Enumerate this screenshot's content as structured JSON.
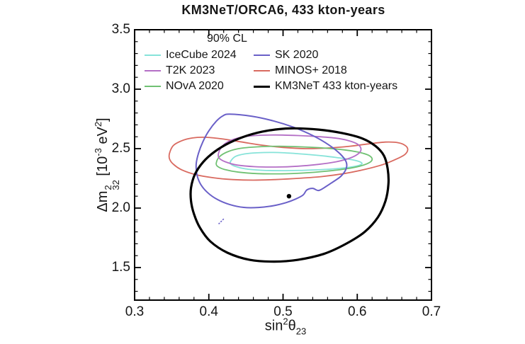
{
  "chart_data": {
    "type": "line",
    "variant": "confidence-contours",
    "title": "KM3NeT/ORCA6, 433 kton-years",
    "xlabel_text": "sin²θ₂₃",
    "ylabel_text": "Δm²₃₂ [10⁻³ eV²]",
    "xlabel": {
      "base": "sin",
      "sup": "2",
      "sym": "θ",
      "sub": "23"
    },
    "ylabel": {
      "base": "Δm",
      "stack_sup": "2",
      "stack_sub": "32",
      "unit_a": "[10",
      "unit_a_sup": "-3",
      "unit_b": "eV",
      "unit_b_sup": "2",
      "unit_close": "]"
    },
    "axis_color": "#000000",
    "background": "#ffffff",
    "x_axis": {
      "min": 0.3,
      "max": 0.7,
      "minor_step": 0.02,
      "major_ticks": [
        {
          "v": 0.3,
          "label": "0.3"
        },
        {
          "v": 0.4,
          "label": "0.4"
        },
        {
          "v": 0.5,
          "label": "0.5"
        },
        {
          "v": 0.6,
          "label": "0.6"
        },
        {
          "v": 0.7,
          "label": "0.7"
        }
      ]
    },
    "y_axis": {
      "min": 1.226,
      "max": 3.5,
      "minor_step": 0.1,
      "major_ticks": [
        {
          "v": 1.5,
          "label": "1.5"
        },
        {
          "v": 2.0,
          "label": "2.0"
        },
        {
          "v": 2.5,
          "label": "2.5"
        },
        {
          "v": 3.0,
          "label": "3.0"
        },
        {
          "v": 3.5,
          "label": "3.5"
        }
      ]
    },
    "legend": {
      "title": "90% CL",
      "position": "top-inside",
      "columns": [
        [
          "icecube",
          "t2k",
          "nova"
        ],
        [
          "sk",
          "minos",
          "km3net"
        ]
      ]
    },
    "draw_order": [
      "minos",
      "icecube",
      "nova",
      "t2k",
      "sk",
      "km3net"
    ],
    "series": [
      {
        "id": "icecube",
        "name": "IceCube 2024",
        "color": "#86e3d9",
        "width": 1.8,
        "points": [
          [
            0.43,
            2.4
          ],
          [
            0.436,
            2.435
          ],
          [
            0.448,
            2.455
          ],
          [
            0.465,
            2.465
          ],
          [
            0.487,
            2.468
          ],
          [
            0.51,
            2.462
          ],
          [
            0.535,
            2.45
          ],
          [
            0.558,
            2.436
          ],
          [
            0.578,
            2.42
          ],
          [
            0.594,
            2.405
          ],
          [
            0.604,
            2.388
          ],
          [
            0.606,
            2.37
          ],
          [
            0.598,
            2.352
          ],
          [
            0.58,
            2.336
          ],
          [
            0.556,
            2.325
          ],
          [
            0.528,
            2.318
          ],
          [
            0.5,
            2.315
          ],
          [
            0.472,
            2.318
          ],
          [
            0.449,
            2.33
          ],
          [
            0.435,
            2.352
          ],
          [
            0.429,
            2.375
          ]
        ]
      },
      {
        "id": "t2k",
        "name": "T2K 2023",
        "color": "#b46fc6",
        "width": 1.8,
        "points": [
          [
            0.413,
            2.46
          ],
          [
            0.418,
            2.52
          ],
          [
            0.428,
            2.565
          ],
          [
            0.443,
            2.595
          ],
          [
            0.462,
            2.61
          ],
          [
            0.49,
            2.615
          ],
          [
            0.52,
            2.61
          ],
          [
            0.55,
            2.6
          ],
          [
            0.575,
            2.585
          ],
          [
            0.592,
            2.56
          ],
          [
            0.602,
            2.53
          ],
          [
            0.605,
            2.49
          ],
          [
            0.601,
            2.455
          ],
          [
            0.59,
            2.42
          ],
          [
            0.572,
            2.39
          ],
          [
            0.548,
            2.368
          ],
          [
            0.52,
            2.352
          ],
          [
            0.49,
            2.345
          ],
          [
            0.462,
            2.348
          ],
          [
            0.438,
            2.362
          ],
          [
            0.422,
            2.39
          ],
          [
            0.414,
            2.42
          ]
        ]
      },
      {
        "id": "nova",
        "name": "NOvA 2020",
        "color": "#70c173",
        "width": 1.8,
        "points": [
          [
            0.41,
            2.378
          ],
          [
            0.414,
            2.43
          ],
          [
            0.424,
            2.47
          ],
          [
            0.44,
            2.5
          ],
          [
            0.465,
            2.515
          ],
          [
            0.495,
            2.52
          ],
          [
            0.525,
            2.515
          ],
          [
            0.555,
            2.505
          ],
          [
            0.582,
            2.49
          ],
          [
            0.602,
            2.47
          ],
          [
            0.615,
            2.445
          ],
          [
            0.62,
            2.415
          ],
          [
            0.617,
            2.385
          ],
          [
            0.605,
            2.355
          ],
          [
            0.585,
            2.33
          ],
          [
            0.558,
            2.31
          ],
          [
            0.528,
            2.295
          ],
          [
            0.497,
            2.288
          ],
          [
            0.466,
            2.29
          ],
          [
            0.44,
            2.302
          ],
          [
            0.421,
            2.325
          ],
          [
            0.412,
            2.35
          ]
        ]
      },
      {
        "id": "sk",
        "name": "SK 2020",
        "color": "#6a60c8",
        "width": 2,
        "points": [
          [
            0.428,
            2.79
          ],
          [
            0.458,
            2.772
          ],
          [
            0.487,
            2.733
          ],
          [
            0.514,
            2.68
          ],
          [
            0.54,
            2.61
          ],
          [
            0.562,
            2.53
          ],
          [
            0.577,
            2.455
          ],
          [
            0.585,
            2.39
          ],
          [
            0.585,
            2.33
          ],
          [
            0.578,
            2.268
          ],
          [
            0.566,
            2.215
          ],
          [
            0.558,
            2.182
          ],
          [
            0.548,
            2.148
          ],
          [
            0.54,
            2.166
          ],
          [
            0.532,
            2.152
          ],
          [
            0.527,
            2.11
          ],
          [
            0.517,
            2.076
          ],
          [
            0.504,
            2.046
          ],
          [
            0.487,
            2.02
          ],
          [
            0.467,
            2.005
          ],
          [
            0.447,
            2.006
          ],
          [
            0.428,
            2.03
          ],
          [
            0.411,
            2.074
          ],
          [
            0.398,
            2.132
          ],
          [
            0.389,
            2.2
          ],
          [
            0.384,
            2.28
          ],
          [
            0.383,
            2.37
          ],
          [
            0.386,
            2.46
          ],
          [
            0.392,
            2.558
          ],
          [
            0.4,
            2.65
          ],
          [
            0.41,
            2.73
          ],
          [
            0.419,
            2.776
          ]
        ]
      },
      {
        "id": "minos",
        "name": "MINOS+ 2018",
        "color": "#d96a60",
        "width": 1.8,
        "points": [
          [
            0.347,
            2.46
          ],
          [
            0.352,
            2.525
          ],
          [
            0.363,
            2.565
          ],
          [
            0.378,
            2.59
          ],
          [
            0.396,
            2.595
          ],
          [
            0.42,
            2.58
          ],
          [
            0.445,
            2.555
          ],
          [
            0.47,
            2.53
          ],
          [
            0.5,
            2.51
          ],
          [
            0.53,
            2.5
          ],
          [
            0.56,
            2.505
          ],
          [
            0.59,
            2.52
          ],
          [
            0.615,
            2.54
          ],
          [
            0.638,
            2.555
          ],
          [
            0.655,
            2.55
          ],
          [
            0.665,
            2.525
          ],
          [
            0.668,
            2.49
          ],
          [
            0.664,
            2.45
          ],
          [
            0.652,
            2.41
          ],
          [
            0.634,
            2.365
          ],
          [
            0.61,
            2.325
          ],
          [
            0.582,
            2.29
          ],
          [
            0.552,
            2.265
          ],
          [
            0.52,
            2.25
          ],
          [
            0.49,
            2.24
          ],
          [
            0.46,
            2.235
          ],
          [
            0.432,
            2.24
          ],
          [
            0.406,
            2.255
          ],
          [
            0.383,
            2.28
          ],
          [
            0.364,
            2.32
          ],
          [
            0.352,
            2.37
          ],
          [
            0.347,
            2.415
          ]
        ]
      },
      {
        "id": "km3net",
        "name": "KM3NeT 433 kton-years",
        "color": "#000000",
        "width": 3.2,
        "points": [
          [
            0.51,
            2.67
          ],
          [
            0.548,
            2.66
          ],
          [
            0.58,
            2.63
          ],
          [
            0.607,
            2.585
          ],
          [
            0.625,
            2.52
          ],
          [
            0.636,
            2.44
          ],
          [
            0.641,
            2.33
          ],
          [
            0.642,
            2.2
          ],
          [
            0.638,
            2.06
          ],
          [
            0.628,
            1.925
          ],
          [
            0.61,
            1.8
          ],
          [
            0.585,
            1.7
          ],
          [
            0.555,
            1.615
          ],
          [
            0.52,
            1.565
          ],
          [
            0.488,
            1.55
          ],
          [
            0.455,
            1.565
          ],
          [
            0.425,
            1.625
          ],
          [
            0.402,
            1.72
          ],
          [
            0.388,
            1.835
          ],
          [
            0.38,
            1.95
          ],
          [
            0.376,
            2.06
          ],
          [
            0.376,
            2.17
          ],
          [
            0.381,
            2.28
          ],
          [
            0.392,
            2.385
          ],
          [
            0.408,
            2.475
          ],
          [
            0.428,
            2.55
          ],
          [
            0.452,
            2.61
          ],
          [
            0.478,
            2.65
          ]
        ]
      }
    ],
    "markers": [
      {
        "id": "km3net-best-fit",
        "shape": "dot",
        "x": 0.508,
        "y": 2.1,
        "color": "#000000",
        "size": 3.2
      },
      {
        "id": "sk-best-fit",
        "shape": "diagonal-dash",
        "x": 0.417,
        "y": 1.89,
        "color": "#6a60c8",
        "size": 4
      }
    ]
  }
}
